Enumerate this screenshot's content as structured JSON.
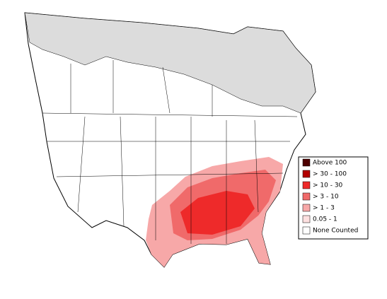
{
  "legend": {
    "items": [
      {
        "label": "Above 100",
        "color": "#4d0000"
      },
      {
        "label": "> 30 - 100",
        "color": "#b30000"
      },
      {
        "label": "> 10 - 30",
        "color": "#ee2a2a"
      },
      {
        "label": "> 3 - 10",
        "color": "#f06a6a"
      },
      {
        "label": "> 1 - 3",
        "color": "#f7a8a8"
      },
      {
        "label": "0.05 - 1",
        "color": "#fde0e0"
      },
      {
        "label": "None Counted",
        "color": "#ffffff"
      }
    ]
  }
}
